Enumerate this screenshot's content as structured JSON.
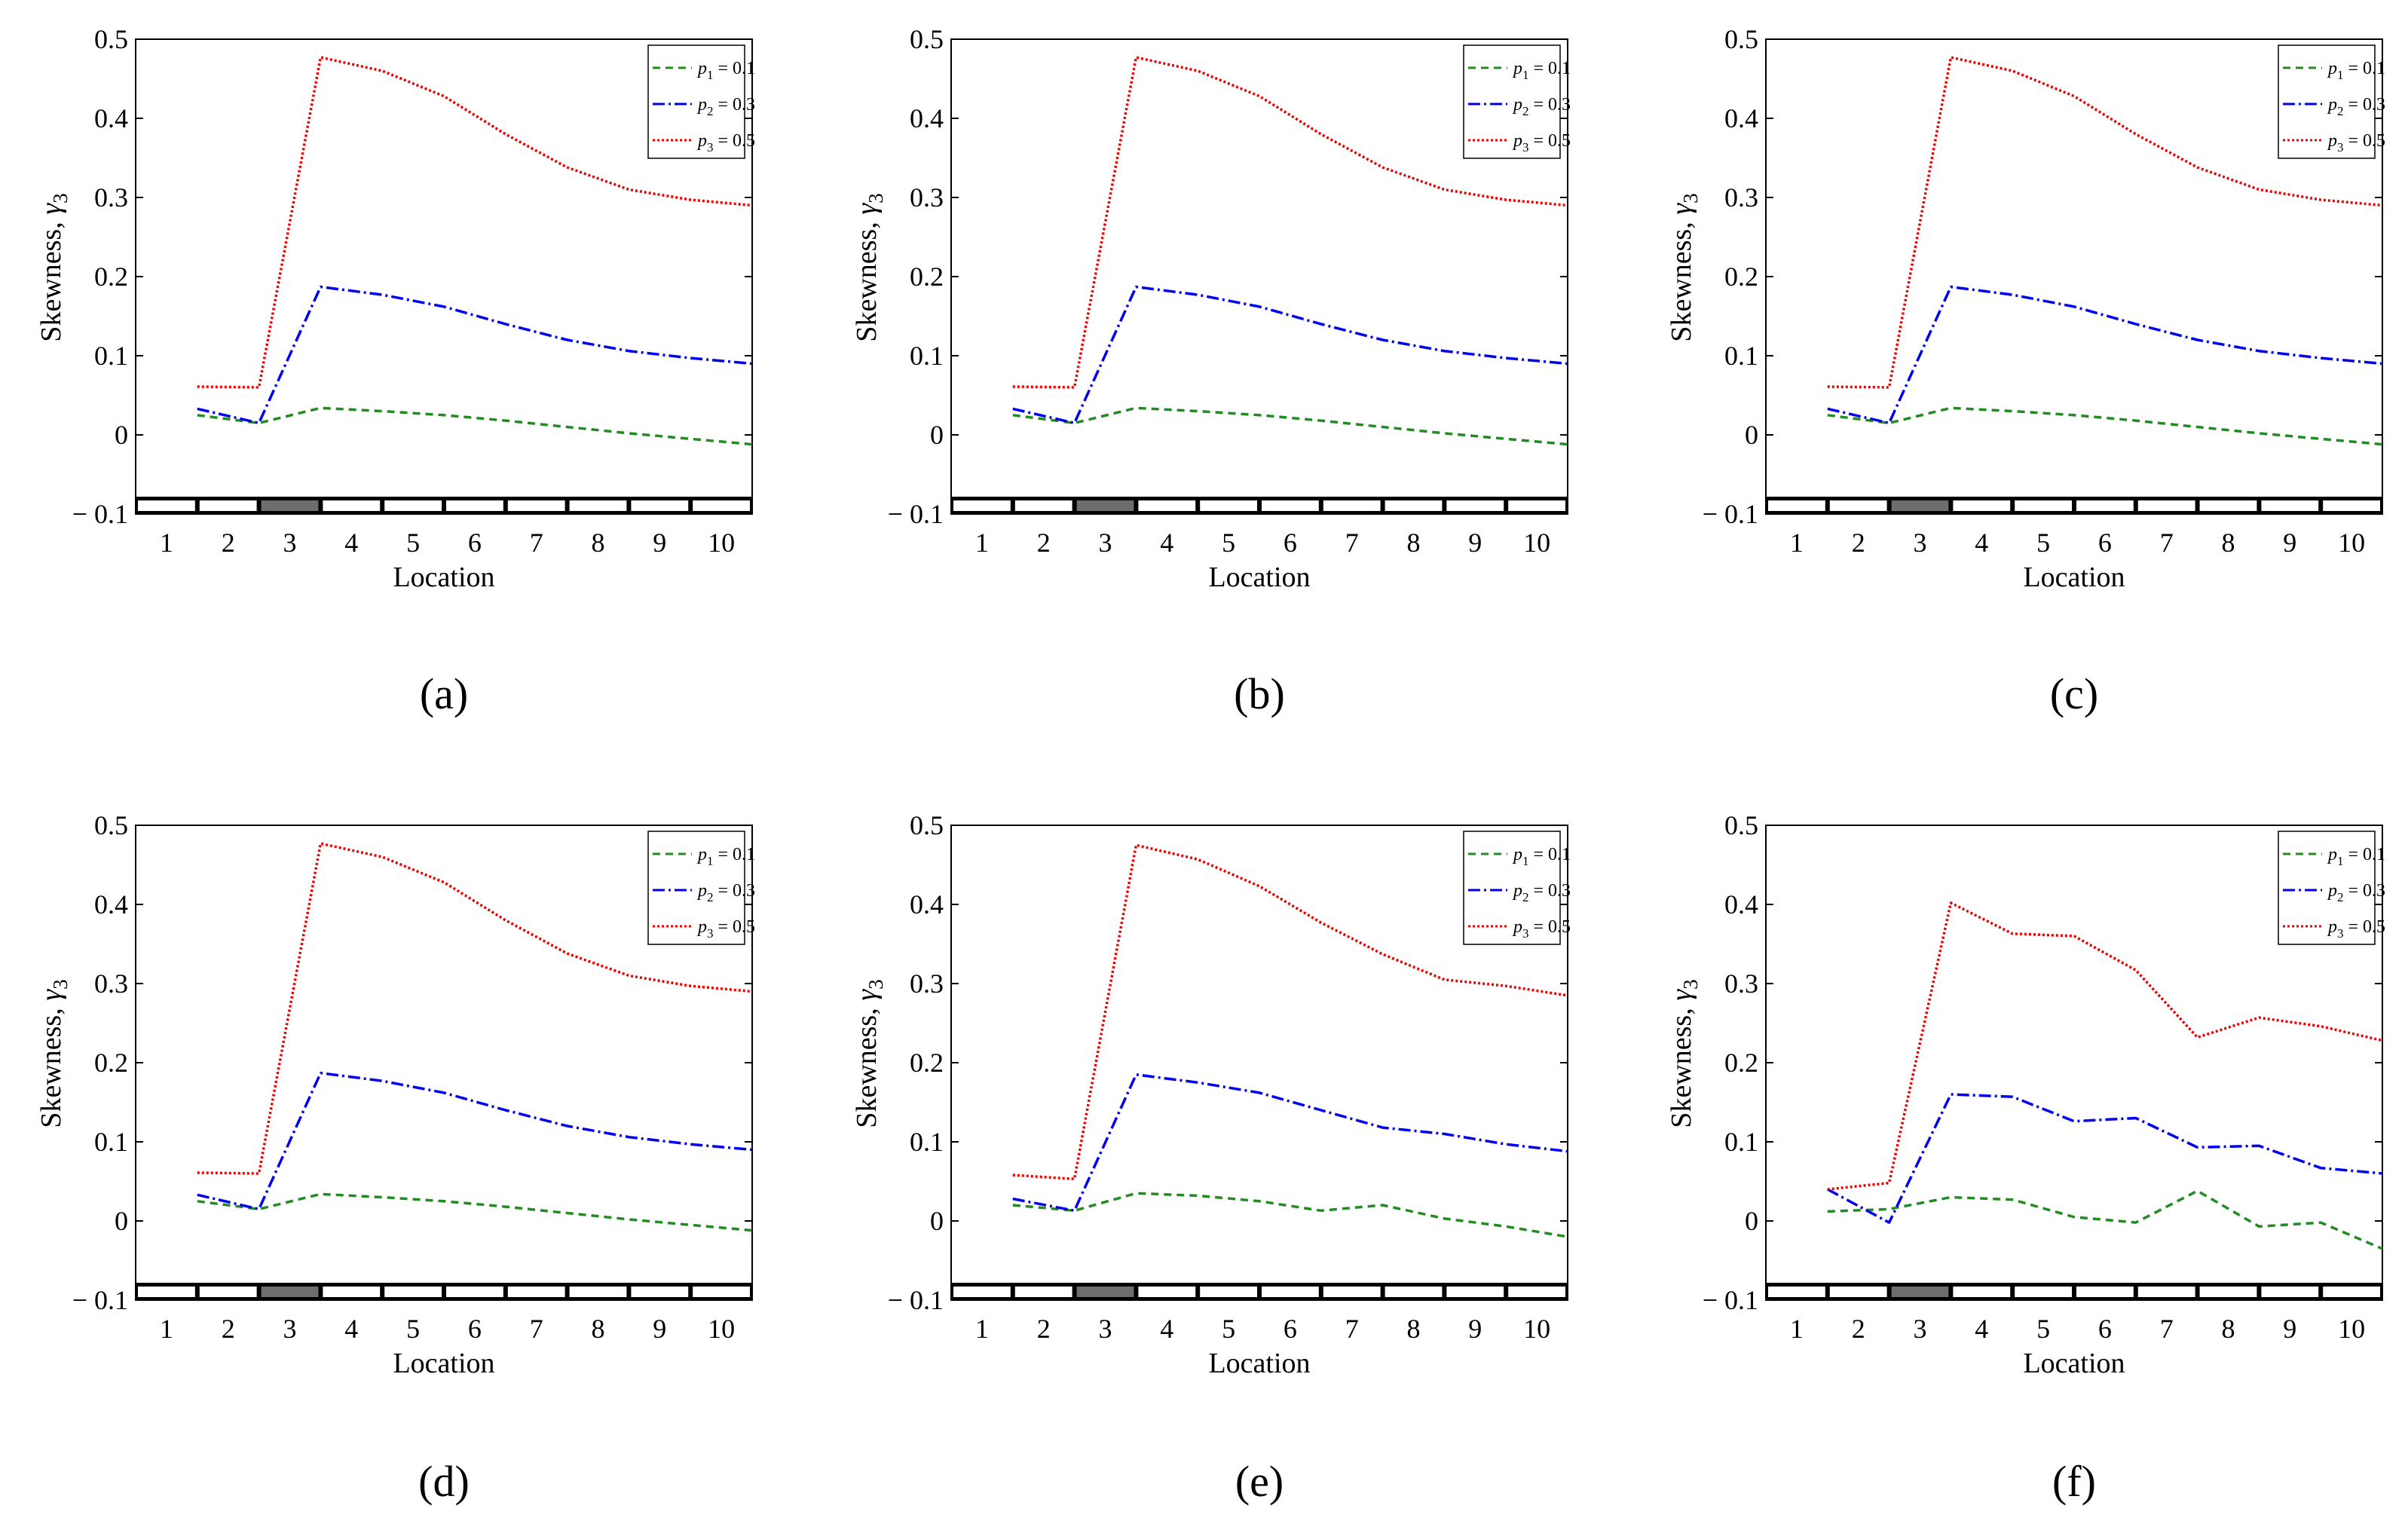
{
  "figure": {
    "panels": [
      {
        "label": "(a)"
      },
      {
        "label": "(b)"
      },
      {
        "label": "(c)"
      },
      {
        "label": "(d)"
      },
      {
        "label": "(e)"
      },
      {
        "label": "(f)"
      }
    ]
  },
  "chart_data": [
    {
      "type": "line",
      "panel": "(a)",
      "ylabel_main": "Skewness, ",
      "ylabel_symbol": "γ",
      "ylabel_sub": "3",
      "xlabel": "Location",
      "ylim": [
        -0.1,
        0.5
      ],
      "yticks": [
        -0.1,
        0,
        0.1,
        0.2,
        0.3,
        0.4,
        0.5
      ],
      "ytick_labels": [
        "− 0.1",
        "0",
        "0.1",
        "0.2",
        "0.3",
        "0.4",
        "0.5"
      ],
      "xlim": [
        0.5,
        10.5
      ],
      "xticks": [
        1,
        2,
        3,
        4,
        5,
        6,
        7,
        8,
        9,
        10
      ],
      "xtick_labels": [
        "1",
        "2",
        "3",
        "4",
        "5",
        "6",
        "7",
        "8",
        "9",
        "10"
      ],
      "highlighted_segment": 3,
      "legend_position": "top-right",
      "x": [
        1.5,
        2.5,
        3.5,
        4.5,
        5.5,
        6.5,
        7.5,
        8.5,
        9.5,
        10.5
      ],
      "series": [
        {
          "name": "p1",
          "legend_prefix": "p",
          "legend_sub": "1",
          "legend_value": " = 0.1",
          "color": "#228b22",
          "dash": "10,7",
          "values": [
            0.025,
            0.015,
            0.034,
            0.03,
            0.025,
            0.018,
            0.01,
            0.002,
            -0.005,
            -0.012
          ]
        },
        {
          "name": "p2",
          "legend_prefix": "p",
          "legend_sub": "2",
          "legend_value": " = 0.3",
          "color": "#0000ee",
          "dash": "16,5,3,5",
          "values": [
            0.033,
            0.015,
            0.187,
            0.177,
            0.162,
            0.14,
            0.12,
            0.106,
            0.097,
            0.09
          ]
        },
        {
          "name": "p3",
          "legend_prefix": "p",
          "legend_sub": "3",
          "legend_value": " = 0.5",
          "color": "#ee0000",
          "dash": "3,3",
          "values": [
            0.061,
            0.06,
            0.477,
            0.46,
            0.428,
            0.38,
            0.338,
            0.31,
            0.297,
            0.29
          ]
        }
      ]
    },
    {
      "type": "line",
      "panel": "(b)",
      "ylabel_main": "Skewness, ",
      "ylabel_symbol": "γ",
      "ylabel_sub": "3",
      "xlabel": "Location",
      "ylim": [
        -0.1,
        0.5
      ],
      "yticks": [
        -0.1,
        0,
        0.1,
        0.2,
        0.3,
        0.4,
        0.5
      ],
      "ytick_labels": [
        "− 0.1",
        "0",
        "0.1",
        "0.2",
        "0.3",
        "0.4",
        "0.5"
      ],
      "xlim": [
        0.5,
        10.5
      ],
      "xticks": [
        1,
        2,
        3,
        4,
        5,
        6,
        7,
        8,
        9,
        10
      ],
      "xtick_labels": [
        "1",
        "2",
        "3",
        "4",
        "5",
        "6",
        "7",
        "8",
        "9",
        "10"
      ],
      "highlighted_segment": 3,
      "legend_position": "top-right",
      "x": [
        1.5,
        2.5,
        3.5,
        4.5,
        5.5,
        6.5,
        7.5,
        8.5,
        9.5,
        10.5
      ],
      "series": [
        {
          "name": "p1",
          "legend_prefix": "p",
          "legend_sub": "1",
          "legend_value": " = 0.1",
          "color": "#228b22",
          "dash": "10,7",
          "values": [
            0.025,
            0.015,
            0.034,
            0.03,
            0.025,
            0.018,
            0.01,
            0.002,
            -0.005,
            -0.012
          ]
        },
        {
          "name": "p2",
          "legend_prefix": "p",
          "legend_sub": "2",
          "legend_value": " = 0.3",
          "color": "#0000ee",
          "dash": "16,5,3,5",
          "values": [
            0.033,
            0.015,
            0.187,
            0.177,
            0.162,
            0.14,
            0.12,
            0.106,
            0.097,
            0.09
          ]
        },
        {
          "name": "p3",
          "legend_prefix": "p",
          "legend_sub": "3",
          "legend_value": " = 0.5",
          "color": "#ee0000",
          "dash": "3,3",
          "values": [
            0.061,
            0.06,
            0.477,
            0.46,
            0.428,
            0.38,
            0.338,
            0.31,
            0.297,
            0.29
          ]
        }
      ]
    },
    {
      "type": "line",
      "panel": "(c)",
      "ylabel_main": "Skewness, ",
      "ylabel_symbol": "γ",
      "ylabel_sub": "3",
      "xlabel": "Location",
      "ylim": [
        -0.1,
        0.5
      ],
      "yticks": [
        -0.1,
        0,
        0.1,
        0.2,
        0.3,
        0.4,
        0.5
      ],
      "ytick_labels": [
        "− 0.1",
        "0",
        "0.1",
        "0.2",
        "0.3",
        "0.4",
        "0.5"
      ],
      "xlim": [
        0.5,
        10.5
      ],
      "xticks": [
        1,
        2,
        3,
        4,
        5,
        6,
        7,
        8,
        9,
        10
      ],
      "xtick_labels": [
        "1",
        "2",
        "3",
        "4",
        "5",
        "6",
        "7",
        "8",
        "9",
        "10"
      ],
      "highlighted_segment": 3,
      "legend_position": "top-right",
      "x": [
        1.5,
        2.5,
        3.5,
        4.5,
        5.5,
        6.5,
        7.5,
        8.5,
        9.5,
        10.5
      ],
      "series": [
        {
          "name": "p1",
          "legend_prefix": "p",
          "legend_sub": "1",
          "legend_value": " = 0.1",
          "color": "#228b22",
          "dash": "10,7",
          "values": [
            0.025,
            0.015,
            0.034,
            0.03,
            0.025,
            0.018,
            0.01,
            0.002,
            -0.005,
            -0.012
          ]
        },
        {
          "name": "p2",
          "legend_prefix": "p",
          "legend_sub": "2",
          "legend_value": " = 0.3",
          "color": "#0000ee",
          "dash": "16,5,3,5",
          "values": [
            0.033,
            0.015,
            0.187,
            0.177,
            0.162,
            0.14,
            0.12,
            0.106,
            0.097,
            0.09
          ]
        },
        {
          "name": "p3",
          "legend_prefix": "p",
          "legend_sub": "3",
          "legend_value": " = 0.5",
          "color": "#ee0000",
          "dash": "3,3",
          "values": [
            0.061,
            0.06,
            0.477,
            0.46,
            0.428,
            0.38,
            0.338,
            0.31,
            0.297,
            0.29
          ]
        }
      ]
    },
    {
      "type": "line",
      "panel": "(d)",
      "ylabel_main": "Skewness, ",
      "ylabel_symbol": "γ",
      "ylabel_sub": "3",
      "xlabel": "Location",
      "ylim": [
        -0.1,
        0.5
      ],
      "yticks": [
        -0.1,
        0,
        0.1,
        0.2,
        0.3,
        0.4,
        0.5
      ],
      "ytick_labels": [
        "− 0.1",
        "0",
        "0.1",
        "0.2",
        "0.3",
        "0.4",
        "0.5"
      ],
      "xlim": [
        0.5,
        10.5
      ],
      "xticks": [
        1,
        2,
        3,
        4,
        5,
        6,
        7,
        8,
        9,
        10
      ],
      "xtick_labels": [
        "1",
        "2",
        "3",
        "4",
        "5",
        "6",
        "7",
        "8",
        "9",
        "10"
      ],
      "highlighted_segment": 3,
      "legend_position": "top-right",
      "x": [
        1.5,
        2.5,
        3.5,
        4.5,
        5.5,
        6.5,
        7.5,
        8.5,
        9.5,
        10.5
      ],
      "series": [
        {
          "name": "p1",
          "legend_prefix": "p",
          "legend_sub": "1",
          "legend_value": " = 0.1",
          "color": "#228b22",
          "dash": "10,7",
          "values": [
            0.025,
            0.015,
            0.034,
            0.03,
            0.025,
            0.018,
            0.01,
            0.002,
            -0.005,
            -0.012
          ]
        },
        {
          "name": "p2",
          "legend_prefix": "p",
          "legend_sub": "2",
          "legend_value": " = 0.3",
          "color": "#0000ee",
          "dash": "16,5,3,5",
          "values": [
            0.033,
            0.015,
            0.187,
            0.177,
            0.162,
            0.14,
            0.12,
            0.106,
            0.097,
            0.09
          ]
        },
        {
          "name": "p3",
          "legend_prefix": "p",
          "legend_sub": "3",
          "legend_value": " = 0.5",
          "color": "#ee0000",
          "dash": "3,3",
          "values": [
            0.061,
            0.06,
            0.477,
            0.46,
            0.428,
            0.38,
            0.338,
            0.31,
            0.297,
            0.29
          ]
        }
      ]
    },
    {
      "type": "line",
      "panel": "(e)",
      "ylabel_main": "Skewness, ",
      "ylabel_symbol": "γ",
      "ylabel_sub": "3",
      "xlabel": "Location",
      "ylim": [
        -0.1,
        0.5
      ],
      "yticks": [
        -0.1,
        0,
        0.1,
        0.2,
        0.3,
        0.4,
        0.5
      ],
      "ytick_labels": [
        "− 0.1",
        "0",
        "0.1",
        "0.2",
        "0.3",
        "0.4",
        "0.5"
      ],
      "xlim": [
        0.5,
        10.5
      ],
      "xticks": [
        1,
        2,
        3,
        4,
        5,
        6,
        7,
        8,
        9,
        10
      ],
      "xtick_labels": [
        "1",
        "2",
        "3",
        "4",
        "5",
        "6",
        "7",
        "8",
        "9",
        "10"
      ],
      "highlighted_segment": 3,
      "legend_position": "top-right",
      "x": [
        1.5,
        2.5,
        3.5,
        4.5,
        5.5,
        6.5,
        7.5,
        8.5,
        9.5,
        10.5
      ],
      "series": [
        {
          "name": "p1",
          "legend_prefix": "p",
          "legend_sub": "1",
          "legend_value": " = 0.1",
          "color": "#228b22",
          "dash": "10,7",
          "values": [
            0.02,
            0.013,
            0.035,
            0.032,
            0.025,
            0.013,
            0.02,
            0.003,
            -0.007,
            -0.02
          ]
        },
        {
          "name": "p2",
          "legend_prefix": "p",
          "legend_sub": "2",
          "legend_value": " = 0.3",
          "color": "#0000ee",
          "dash": "16,5,3,5",
          "values": [
            0.028,
            0.013,
            0.185,
            0.175,
            0.162,
            0.14,
            0.118,
            0.11,
            0.097,
            0.088
          ]
        },
        {
          "name": "p3",
          "legend_prefix": "p",
          "legend_sub": "3",
          "legend_value": " = 0.5",
          "color": "#ee0000",
          "dash": "3,3",
          "values": [
            0.058,
            0.053,
            0.475,
            0.457,
            0.423,
            0.377,
            0.337,
            0.305,
            0.297,
            0.285
          ]
        }
      ]
    },
    {
      "type": "line",
      "panel": "(f)",
      "ylabel_main": "Skewness, ",
      "ylabel_symbol": "γ",
      "ylabel_sub": "3",
      "xlabel": "Location",
      "ylim": [
        -0.1,
        0.5
      ],
      "yticks": [
        -0.1,
        0,
        0.1,
        0.2,
        0.3,
        0.4,
        0.5
      ],
      "ytick_labels": [
        "− 0.1",
        "0",
        "0.1",
        "0.2",
        "0.3",
        "0.4",
        "0.5"
      ],
      "xlim": [
        0.5,
        10.5
      ],
      "xticks": [
        1,
        2,
        3,
        4,
        5,
        6,
        7,
        8,
        9,
        10
      ],
      "xtick_labels": [
        "1",
        "2",
        "3",
        "4",
        "5",
        "6",
        "7",
        "8",
        "9",
        "10"
      ],
      "highlighted_segment": 3,
      "legend_position": "top-right",
      "x": [
        1.5,
        2.5,
        3.5,
        4.5,
        5.5,
        6.5,
        7.5,
        8.5,
        9.5,
        10.5
      ],
      "series": [
        {
          "name": "p1",
          "legend_prefix": "p",
          "legend_sub": "1",
          "legend_value": " = 0.1",
          "color": "#228b22",
          "dash": "10,7",
          "values": [
            0.012,
            0.015,
            0.03,
            0.027,
            0.005,
            -0.002,
            0.038,
            -0.007,
            -0.002,
            -0.035
          ]
        },
        {
          "name": "p2",
          "legend_prefix": "p",
          "legend_sub": "2",
          "legend_value": " = 0.3",
          "color": "#0000ee",
          "dash": "16,5,3,5",
          "values": [
            0.04,
            -0.002,
            0.16,
            0.157,
            0.126,
            0.13,
            0.093,
            0.095,
            0.067,
            0.06
          ]
        },
        {
          "name": "p3",
          "legend_prefix": "p",
          "legend_sub": "3",
          "legend_value": " = 0.5",
          "color": "#ee0000",
          "dash": "3,3",
          "values": [
            0.04,
            0.048,
            0.402,
            0.363,
            0.36,
            0.317,
            0.232,
            0.257,
            0.246,
            0.228
          ]
        }
      ]
    }
  ]
}
